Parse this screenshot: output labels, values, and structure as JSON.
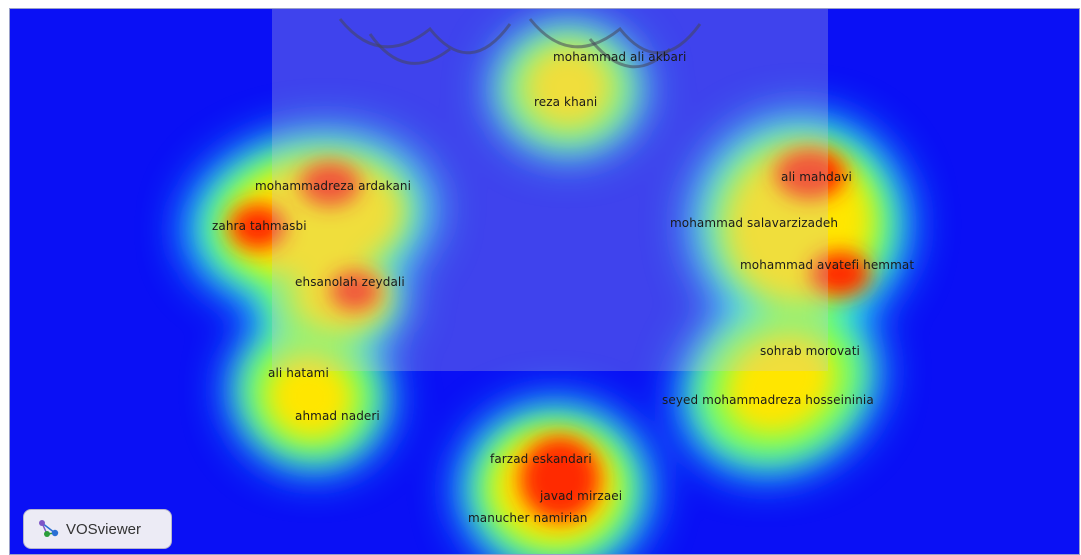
{
  "app": {
    "logo_text": "VOSviewer"
  },
  "colors": {
    "background": "#0a10f5",
    "low": "#22e6ff",
    "mid": "#8cff4a",
    "high": "#ffe600",
    "peak": "#ff2a00"
  },
  "nodes": [
    {
      "label": "mohammad ali akbari"
    },
    {
      "label": "reza khani"
    },
    {
      "label": "mohammadreza ardakani"
    },
    {
      "label": "zahra tahmasbi"
    },
    {
      "label": "ehsanolah zeydali"
    },
    {
      "label": "ali hatami"
    },
    {
      "label": "ahmad naderi"
    },
    {
      "label": "ali mahdavi"
    },
    {
      "label": "mohammad salavarzizadeh"
    },
    {
      "label": "mohammad avatefi hemmat"
    },
    {
      "label": "sohrab morovati"
    },
    {
      "label": "seyed mohammadreza hosseininia"
    },
    {
      "label": "farzad eskandari"
    },
    {
      "label": "javad mirzaei"
    },
    {
      "label": "manucher namirian"
    }
  ]
}
